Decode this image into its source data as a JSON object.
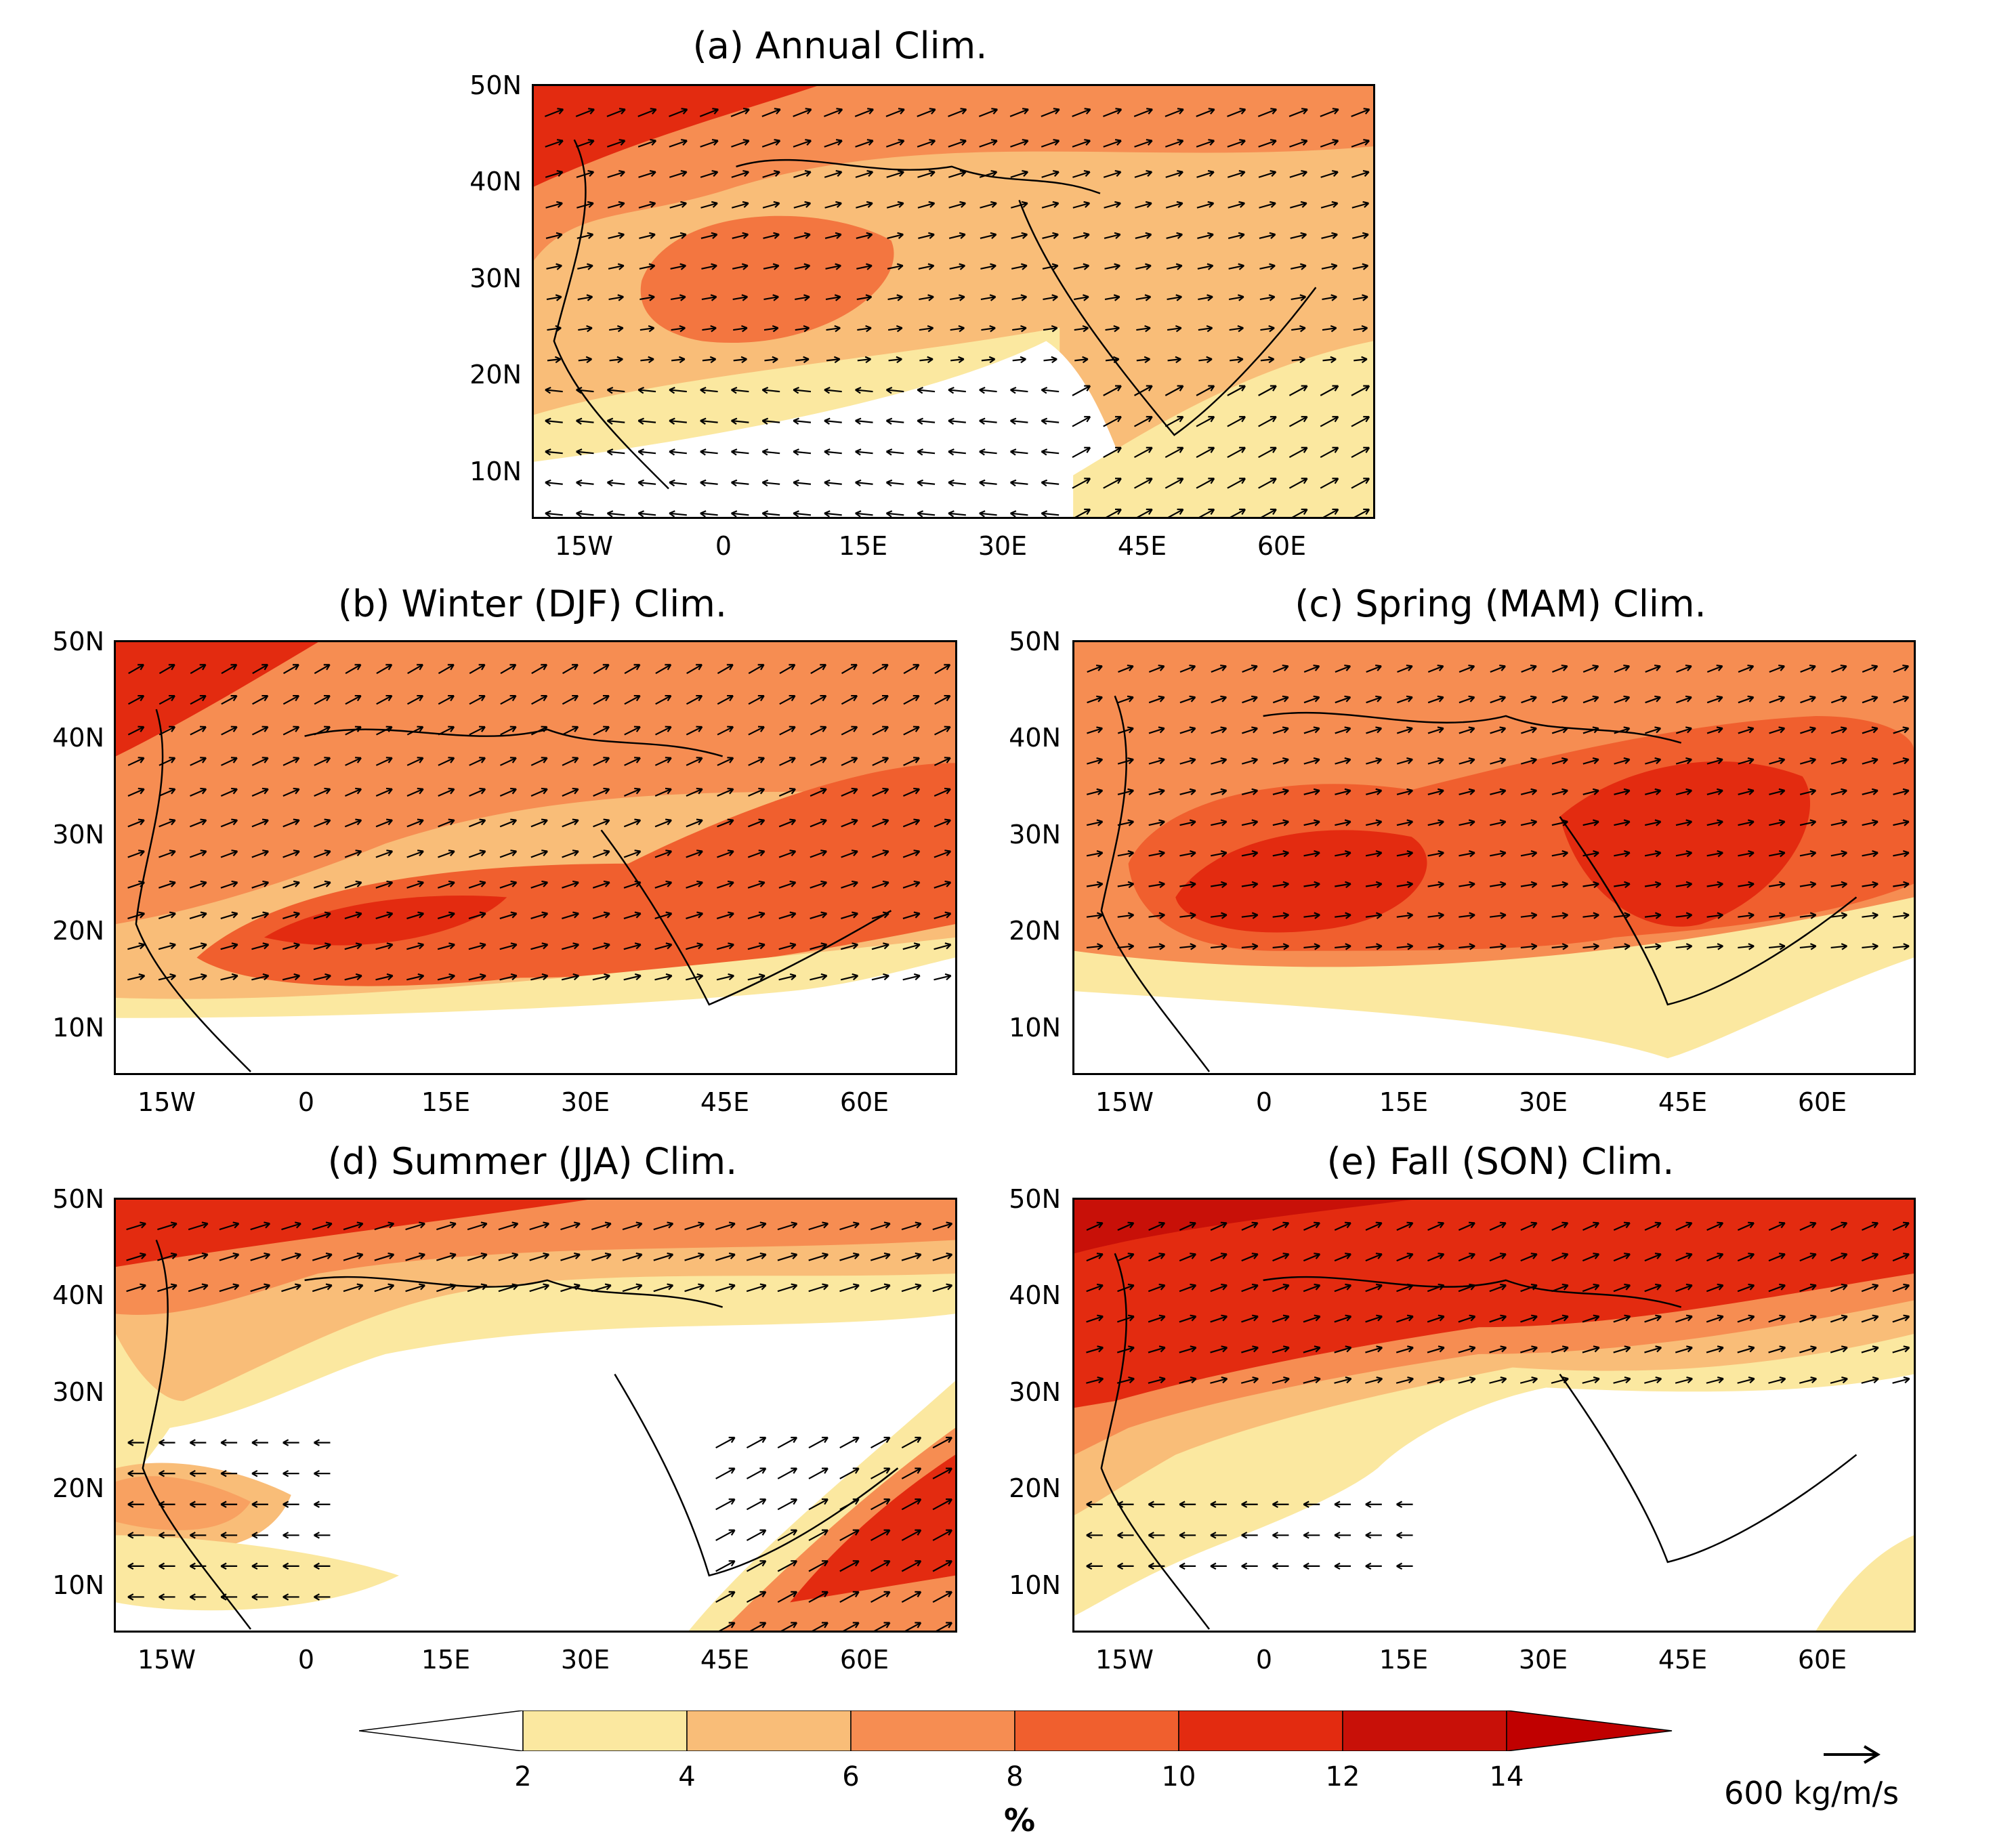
{
  "panels": [
    {
      "id": "a",
      "title": "(a) Annual Clim."
    },
    {
      "id": "b",
      "title": "(b) Winter (DJF) Clim."
    },
    {
      "id": "c",
      "title": "(c) Spring (MAM) Clim."
    },
    {
      "id": "d",
      "title": "(d) Summer (JJA) Clim."
    },
    {
      "id": "e",
      "title": "(e) Fall (SON) Clim."
    }
  ],
  "axes": {
    "lat_labels": [
      "50N",
      "40N",
      "30N",
      "20N",
      "10N"
    ],
    "lon_labels": [
      "15W",
      "0",
      "15E",
      "30E",
      "45E",
      "60E"
    ]
  },
  "colorbar": {
    "levels": [
      "2",
      "4",
      "6",
      "8",
      "10",
      "12",
      "14"
    ],
    "colors": [
      "#ffffff",
      "#fbe8a0",
      "#f9bd78",
      "#f68d52",
      "#f05f2e",
      "#e32b10",
      "#c81008",
      "#c00000"
    ],
    "unit": "%"
  },
  "reference_vector": {
    "label": "600 kg/m/s"
  }
}
